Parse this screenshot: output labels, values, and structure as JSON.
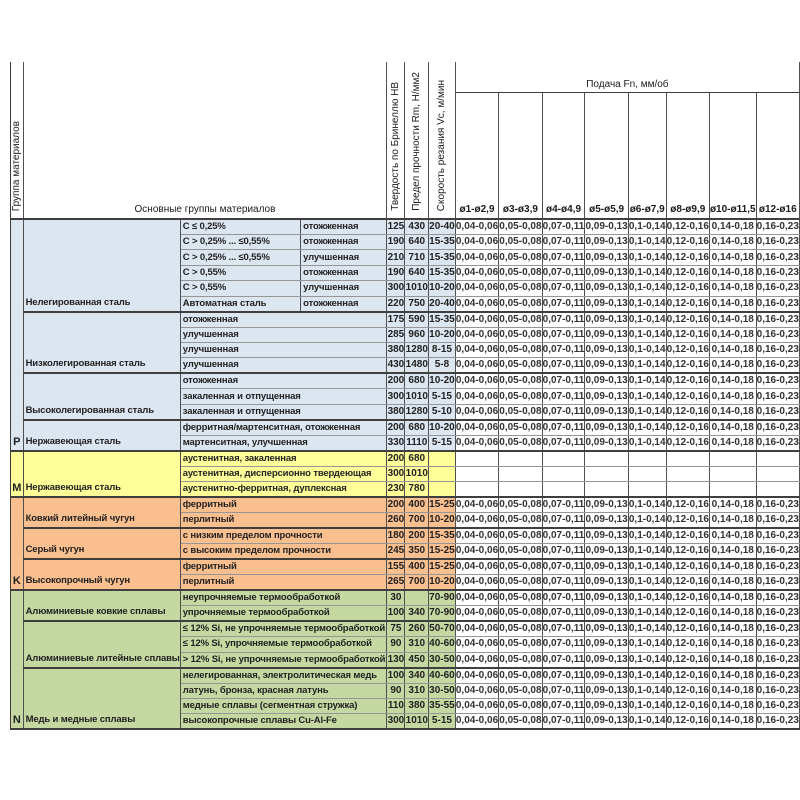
{
  "header": {
    "group_col": "Группа материалов",
    "main_groups": "Основные группы материалов",
    "hardness": "Твердость по Бринеллю HB",
    "strength": "Предел прочности Rm, Н/мм2",
    "speed": "Скорость резания Vc, м/мин",
    "feed_title": "Подача Fn, мм/об",
    "diameters": [
      "ø1-ø2,9",
      "ø3-ø3,9",
      "ø4-ø4,9",
      "ø5-ø5,9",
      "ø6-ø7,9",
      "ø8-ø9,9",
      "ø10-ø11,5",
      "ø12-ø16"
    ]
  },
  "feed_values": [
    "0,04-0,06",
    "0,05-0,08",
    "0,07-0,11",
    "0,09-0,13",
    "0,1-0,14",
    "0,12-0,16",
    "0,14-0,18",
    "0,16-0,23"
  ],
  "sections": [
    {
      "letter": "P",
      "color": "#dce6f1",
      "rows": [
        0,
        14
      ]
    },
    {
      "letter": "M",
      "color": "#ffff99",
      "rows": [
        15,
        17
      ]
    },
    {
      "letter": "K",
      "color": "#fabf8f",
      "rows": [
        18,
        23
      ]
    },
    {
      "letter": "N",
      "color": "#c6d8a2",
      "rows": [
        24,
        32
      ]
    }
  ],
  "groups": [
    {
      "label": "Нелегированная сталь",
      "rows": [
        0,
        5
      ]
    },
    {
      "label": "Низколегированная сталь",
      "rows": [
        6,
        9
      ]
    },
    {
      "label": "Высоколегированная сталь",
      "rows": [
        10,
        12
      ]
    },
    {
      "label": "Нержавеющая сталь",
      "rows": [
        13,
        14
      ]
    },
    {
      "label": "Нержавеющая сталь",
      "rows": [
        15,
        17
      ]
    },
    {
      "label": "Ковкий литейный чугун",
      "rows": [
        18,
        19
      ]
    },
    {
      "label": "Серый чугун",
      "rows": [
        20,
        21
      ]
    },
    {
      "label": "Высокопрочный чугун",
      "rows": [
        22,
        23
      ]
    },
    {
      "label": "Алюминиевые ковкие сплавы",
      "rows": [
        24,
        25
      ]
    },
    {
      "label": "Алюминиевые литейные сплавы",
      "rows": [
        26,
        28
      ]
    },
    {
      "label": "Медь и медные сплавы",
      "rows": [
        29,
        32
      ]
    }
  ],
  "rows": [
    {
      "sub": "C ≤ 0,25%",
      "treat": "отожженная",
      "hb": "125",
      "rm": "430",
      "vc": "20-40"
    },
    {
      "sub": "C > 0,25% ... ≤0,55%",
      "treat": "отожженная",
      "hb": "190",
      "rm": "640",
      "vc": "15-35"
    },
    {
      "sub": "C > 0,25% ... ≤0,55%",
      "treat": "улучшенная",
      "hb": "210",
      "rm": "710",
      "vc": "15-35"
    },
    {
      "sub": "C > 0,55%",
      "treat": "отожженная",
      "hb": "190",
      "rm": "640",
      "vc": "15-35"
    },
    {
      "sub": "C > 0,55%",
      "treat": "улучшенная",
      "hb": "300",
      "rm": "1010",
      "vc": "10-20"
    },
    {
      "sub": "Автоматная сталь",
      "treat": "отожженная",
      "hb": "220",
      "rm": "750",
      "vc": "20-40"
    },
    {
      "label": "отожженная",
      "hb": "175",
      "rm": "590",
      "vc": "15-35"
    },
    {
      "label": "улучшенная",
      "hb": "285",
      "rm": "960",
      "vc": "10-20"
    },
    {
      "label": "улучшенная",
      "hb": "380",
      "rm": "1280",
      "vc": "8-15"
    },
    {
      "label": "улучшенная",
      "hb": "430",
      "rm": "1480",
      "vc": "5-8"
    },
    {
      "label": "отожженная",
      "hb": "200",
      "rm": "680",
      "vc": "10-20"
    },
    {
      "label": "закаленная и отпущенная",
      "hb": "300",
      "rm": "1010",
      "vc": "5-15"
    },
    {
      "label": "закаленная и отпущенная",
      "hb": "380",
      "rm": "1280",
      "vc": "5-10"
    },
    {
      "label": "ферритная/мартенситная, отожженная",
      "hb": "200",
      "rm": "680",
      "vc": "10-20"
    },
    {
      "label": "мартенситная, улучшенная",
      "hb": "330",
      "rm": "1110",
      "vc": "5-15"
    },
    {
      "label": "аустенитная, закаленная",
      "hb": "200",
      "rm": "680",
      "vc": "",
      "nofeed": true
    },
    {
      "label": "аустенитная, дисперсионно твердеющая",
      "hb": "300",
      "rm": "1010",
      "vc": "",
      "nofeed": true
    },
    {
      "label": "аустенитно-ферритная, дуплексная",
      "hb": "230",
      "rm": "780",
      "vc": "",
      "nofeed": true
    },
    {
      "label": "ферритный",
      "hb": "200",
      "rm": "400",
      "vc": "15-25"
    },
    {
      "label": "перлитный",
      "hb": "260",
      "rm": "700",
      "vc": "10-20"
    },
    {
      "label": "с низким пределом прочности",
      "hb": "180",
      "rm": "200",
      "vc": "15-35"
    },
    {
      "label": "с высоким пределом прочности",
      "hb": "245",
      "rm": "350",
      "vc": "15-25"
    },
    {
      "label": "ферритный",
      "hb": "155",
      "rm": "400",
      "vc": "15-25"
    },
    {
      "label": "перлитный",
      "hb": "265",
      "rm": "700",
      "vc": "10-20"
    },
    {
      "label": "неупрочняемые термообработкой",
      "hb": "30",
      "rm": "",
      "vc": "70-90"
    },
    {
      "label": "упрочняемые термообработкой",
      "hb": "100",
      "rm": "340",
      "vc": "70-90"
    },
    {
      "label": "≤ 12% Si, не упрочняемые термообработкой",
      "hb": "75",
      "rm": "260",
      "vc": "50-70"
    },
    {
      "label": "≤ 12% Si, упрочняемые термообработкой",
      "hb": "90",
      "rm": "310",
      "vc": "40-60"
    },
    {
      "label": "> 12% Si, не упрочняемые термообработкой",
      "hb": "130",
      "rm": "450",
      "vc": "30-50"
    },
    {
      "label": "нелегированная, электролитическая медь",
      "hb": "100",
      "rm": "340",
      "vc": "40-60"
    },
    {
      "label": "латунь, бронза, красная латунь",
      "hb": "90",
      "rm": "310",
      "vc": "30-50"
    },
    {
      "label": "медные сплавы (сегментная стружка)",
      "hb": "110",
      "rm": "380",
      "vc": "35-55"
    },
    {
      "label": "высокопрочные сплавы Cu-Al-Fe",
      "hb": "300",
      "rm": "1010",
      "vc": "5-15"
    }
  ]
}
